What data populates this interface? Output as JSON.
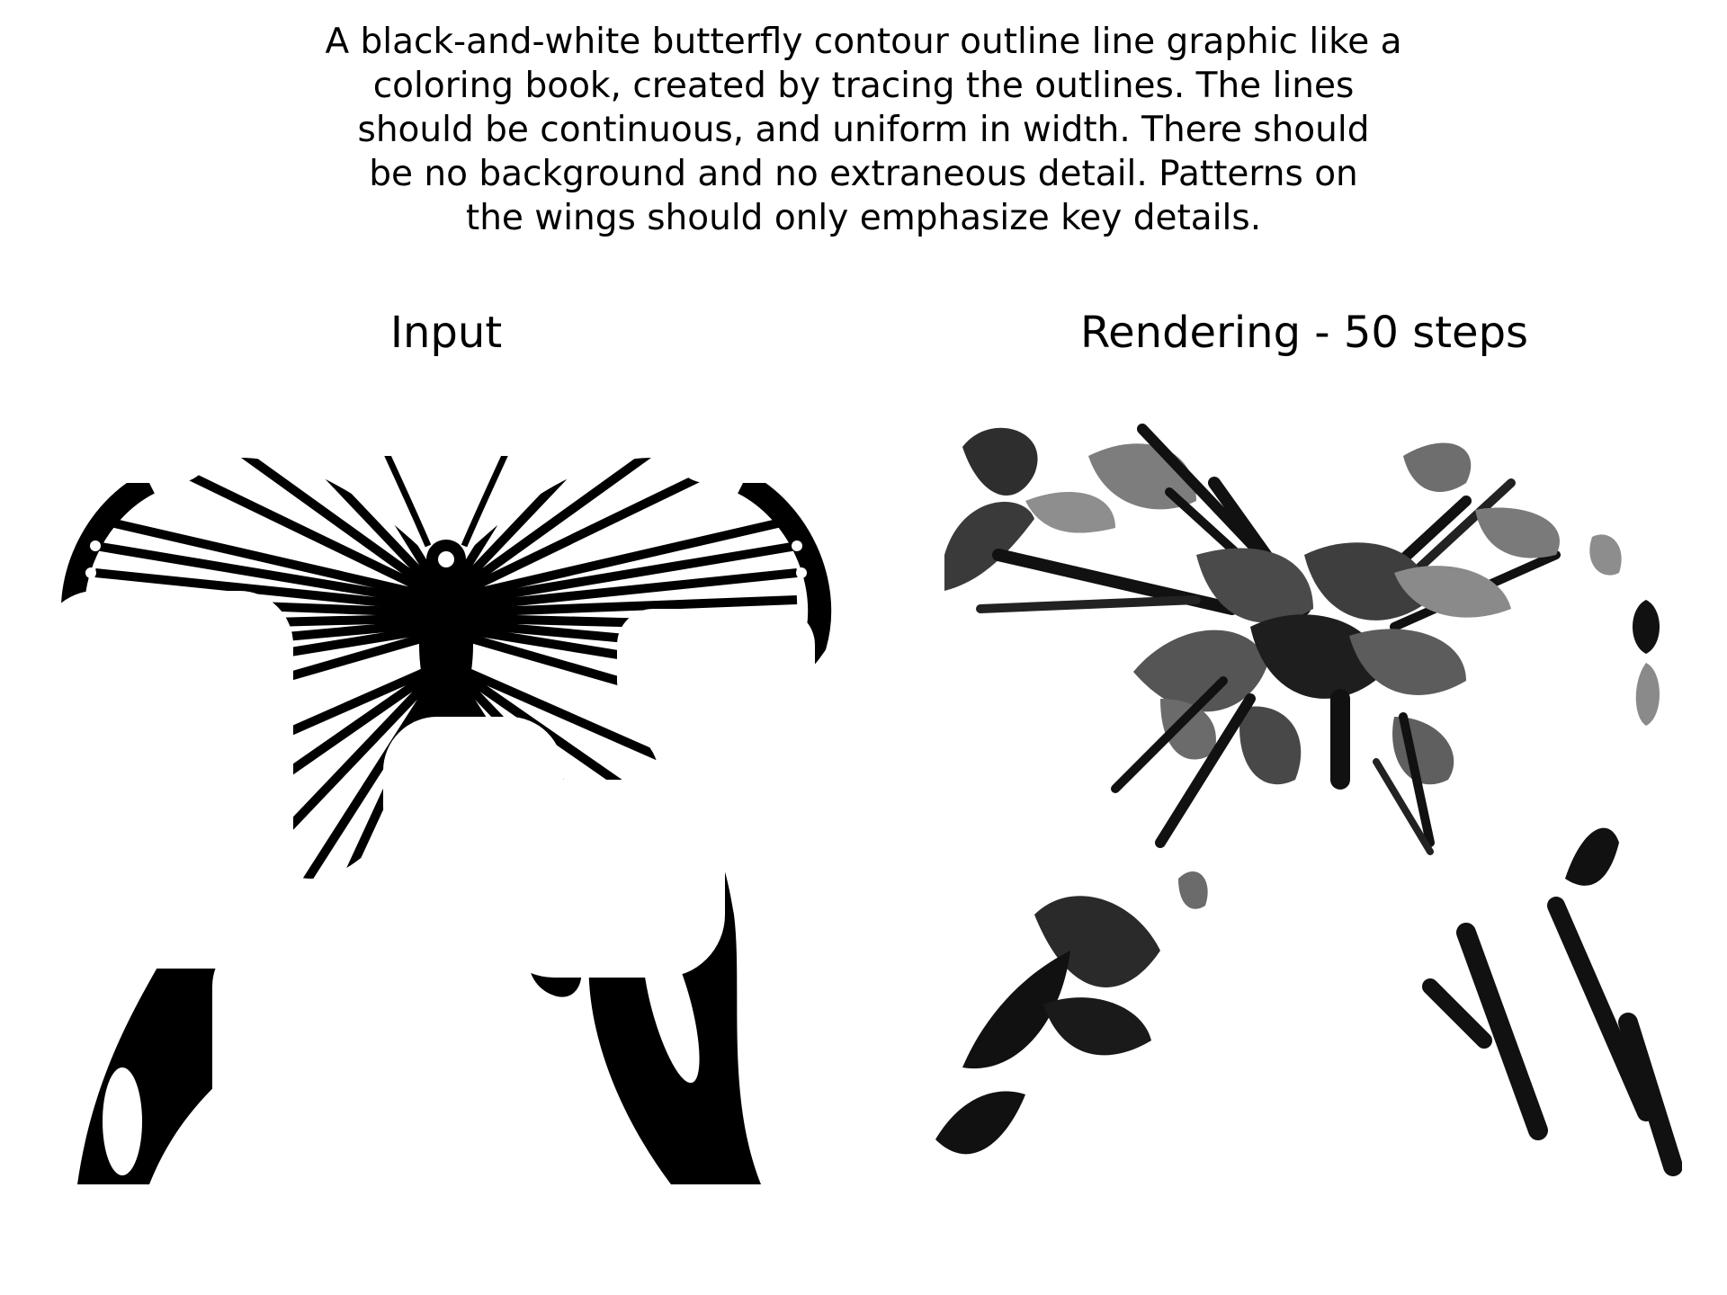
{
  "prompt": {
    "lines": [
      "A black-and-white butterfly contour outline line graphic like a",
      "coloring book, created by tracing the outlines. The lines",
      "should be continuous, and uniform in width. There should",
      "be no background and no extraneous detail. Patterns on",
      "the wings should only emphasize key details."
    ]
  },
  "panels": {
    "left": {
      "title": "Input"
    },
    "right": {
      "title": "Rendering - 50 steps"
    }
  }
}
